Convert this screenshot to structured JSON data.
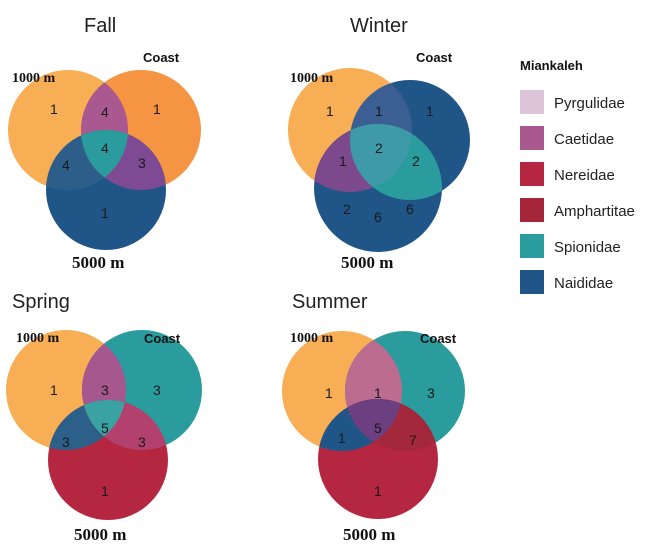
{
  "colors": {
    "orange_light": "#F7AE54",
    "orange_dark": "#F48E38",
    "naididae": "#1F5687",
    "spionidae": "#2A9C9D",
    "caetidae": "#A9598F",
    "nereidae": "#B52740",
    "amphartitae": "#A52638",
    "pyrgulidae": "#DCC4D9"
  },
  "diagrams": [
    {
      "season": "Fall",
      "top_left_label": "1000 m",
      "top_right_label": "Coast",
      "bottom_label": "5000 m",
      "colors": [
        "#F7AE54",
        "#F48E38",
        "#1F5687"
      ],
      "counts": {
        "a_only": "1",
        "b_only": "1",
        "c_only": "1",
        "ab": "4",
        "ac": "4",
        "bc": "3",
        "abc": "4"
      }
    },
    {
      "season": "Winter",
      "top_left_label": "1000 m",
      "top_right_label": "Coast",
      "bottom_label": "5000 m",
      "colors": [
        "#F7AE54",
        "#1F5687",
        "#1F5687"
      ],
      "counts": {
        "a_only": "1",
        "b_only": "1",
        "c_only_left": "2",
        "c_only_mid": "6",
        "c_only_right": "6",
        "ab": "1",
        "ac": "1",
        "bc": "2",
        "abc": "2"
      }
    },
    {
      "season": "Spring",
      "top_left_label": "1000 m",
      "top_right_label": "Coast",
      "bottom_label": "5000 m",
      "colors": [
        "#F7AE54",
        "#2A9C9D",
        "#B52740"
      ],
      "counts": {
        "a_only": "1",
        "b_only": "3",
        "c_only": "1",
        "ab": "3",
        "ac": "3",
        "bc": "3",
        "abc": "5"
      }
    },
    {
      "season": "Summer",
      "top_left_label": "1000 m",
      "top_right_label": "Coast",
      "bottom_label": "5000 m",
      "colors": [
        "#F7AE54",
        "#2A9C9D",
        "#B52740"
      ],
      "counts": {
        "a_only": "1",
        "b_only": "3",
        "c_only": "1",
        "ab": "1",
        "ac": "1",
        "bc": "7",
        "abc": "5"
      }
    }
  ],
  "legend": {
    "title": "Miankaleh",
    "items": [
      {
        "label": "Pyrgulidae",
        "color": "#DCC4D9"
      },
      {
        "label": "Caetidae",
        "color": "#A9598F"
      },
      {
        "label": "Nereidae",
        "color": "#B52740"
      },
      {
        "label": "Amphartitae",
        "color": "#A52638"
      },
      {
        "label": "Spionidae",
        "color": "#2A9C9D"
      },
      {
        "label": "Naididae",
        "color": "#1F5687"
      }
    ]
  }
}
